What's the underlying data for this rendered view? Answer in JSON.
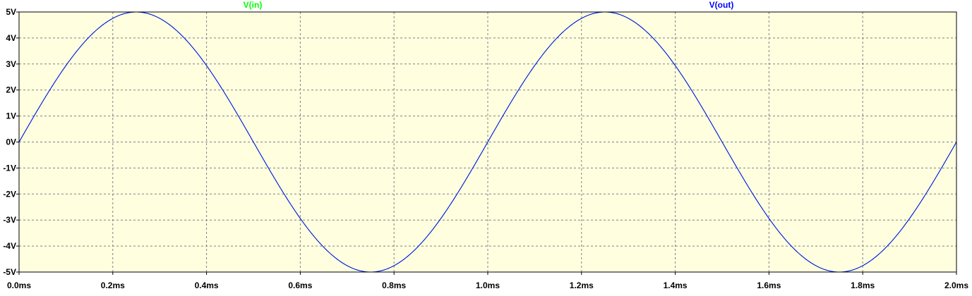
{
  "chart_data": {
    "type": "line",
    "series": [
      {
        "name": "V(in)",
        "color": "#00ff00",
        "function": "sine",
        "amplitude": 5,
        "frequency_khz": 1,
        "phase": 0
      },
      {
        "name": "V(out)",
        "color": "#0000ff",
        "function": "sine",
        "amplitude": 5,
        "frequency_khz": 1,
        "phase": 0
      }
    ],
    "x_unit": "ms",
    "xlim": [
      0.0,
      2.0
    ],
    "ylim": [
      -5,
      5
    ],
    "x_ticks": [
      "0.0ms",
      "0.2ms",
      "0.4ms",
      "0.6ms",
      "0.8ms",
      "1.0ms",
      "1.2ms",
      "1.4ms",
      "1.6ms",
      "1.8ms",
      "2.0ms"
    ],
    "y_ticks": [
      "5V",
      "4V",
      "3V",
      "2V",
      "1V",
      "0V",
      "-1V",
      "-2V",
      "-3V",
      "-4V",
      "-5V"
    ],
    "grid": true,
    "plot_background": "#ffffe0",
    "grid_color": "#808080"
  }
}
